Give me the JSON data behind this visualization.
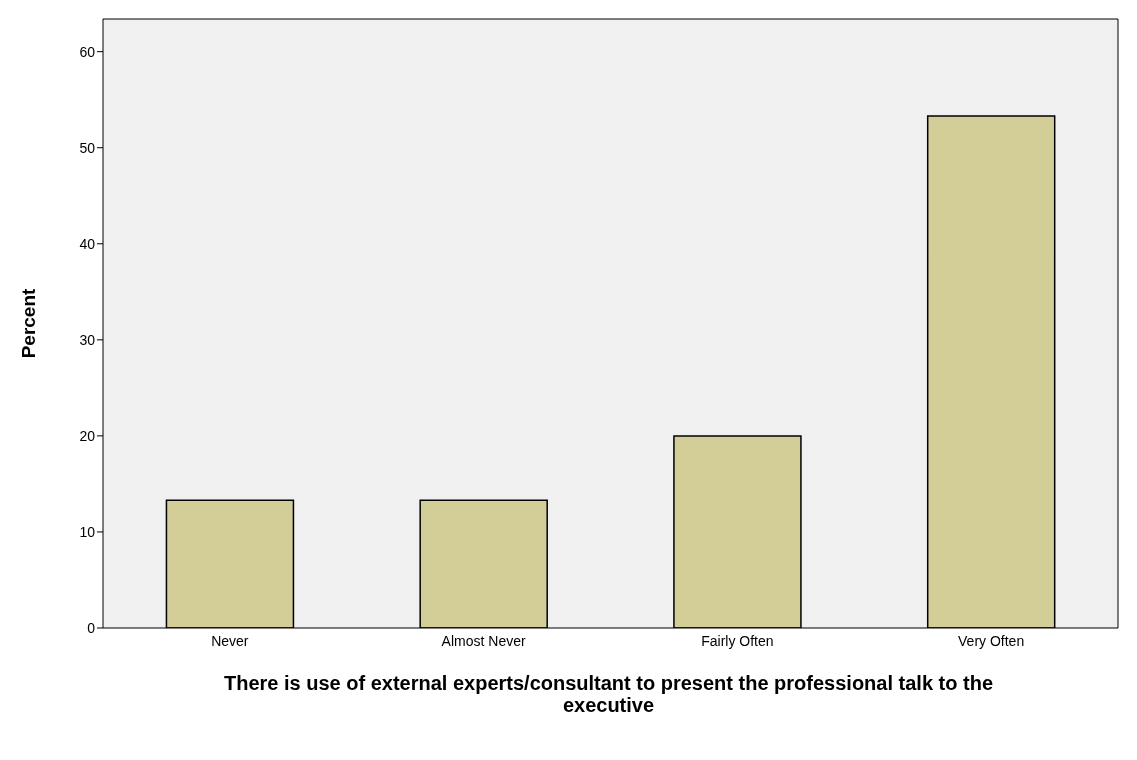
{
  "chart_data": {
    "type": "bar",
    "xlabel": "There is use of external experts/consultant to present the professional talk to the executive",
    "ylabel": "Percent",
    "categories": [
      "Never",
      "Almost Never",
      "Fairly Often",
      "Very Often"
    ],
    "values": [
      13.3,
      13.3,
      20,
      53.3
    ],
    "color": "#d3ce97",
    "ylim": [
      0,
      63.4
    ],
    "yticks": [
      0,
      10,
      20,
      30,
      40,
      50,
      60
    ],
    "grid": false
  }
}
